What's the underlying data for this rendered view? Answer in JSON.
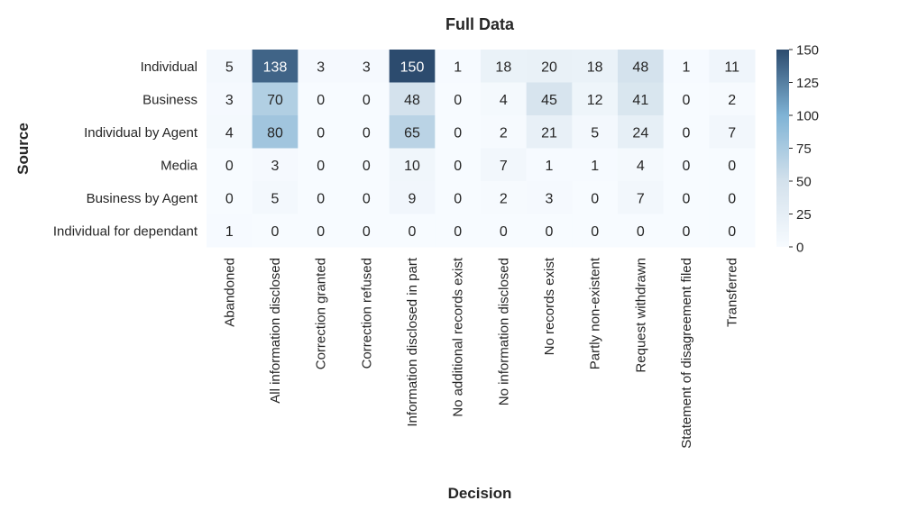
{
  "chart_data": {
    "type": "heatmap",
    "title": "Full Data",
    "xlabel": "Decision",
    "ylabel": "Source",
    "x_categories": [
      "Abandoned",
      "All information disclosed",
      "Correction granted",
      "Correction refused",
      "Information disclosed in part",
      "No additional records exist",
      "No information disclosed",
      "No records exist",
      "Partly non-existent",
      "Request withdrawn",
      "Statement of disagreement filed",
      "Transferred"
    ],
    "y_categories": [
      "Individual",
      "Business",
      "Individual by Agent",
      "Media",
      "Business by Agent",
      "Individual for dependant"
    ],
    "values": [
      [
        5,
        138,
        3,
        3,
        150,
        1,
        18,
        20,
        18,
        48,
        1,
        11
      ],
      [
        3,
        70,
        0,
        0,
        48,
        0,
        4,
        45,
        12,
        41,
        0,
        2
      ],
      [
        4,
        80,
        0,
        0,
        65,
        0,
        2,
        21,
        5,
        24,
        0,
        7
      ],
      [
        0,
        3,
        0,
        0,
        10,
        0,
        7,
        1,
        1,
        4,
        0,
        0
      ],
      [
        0,
        5,
        0,
        0,
        9,
        0,
        2,
        3,
        0,
        7,
        0,
        0
      ],
      [
        1,
        0,
        0,
        0,
        0,
        0,
        0,
        0,
        0,
        0,
        0,
        0
      ]
    ],
    "colorbar": {
      "range": [
        0,
        150
      ],
      "ticks": [
        "0",
        "25",
        "50",
        "75",
        "100",
        "125",
        "150"
      ],
      "colors": [
        "#f7fbff",
        "#d3e1ec",
        "#7fb3d5",
        "#2c4b6e"
      ]
    }
  }
}
